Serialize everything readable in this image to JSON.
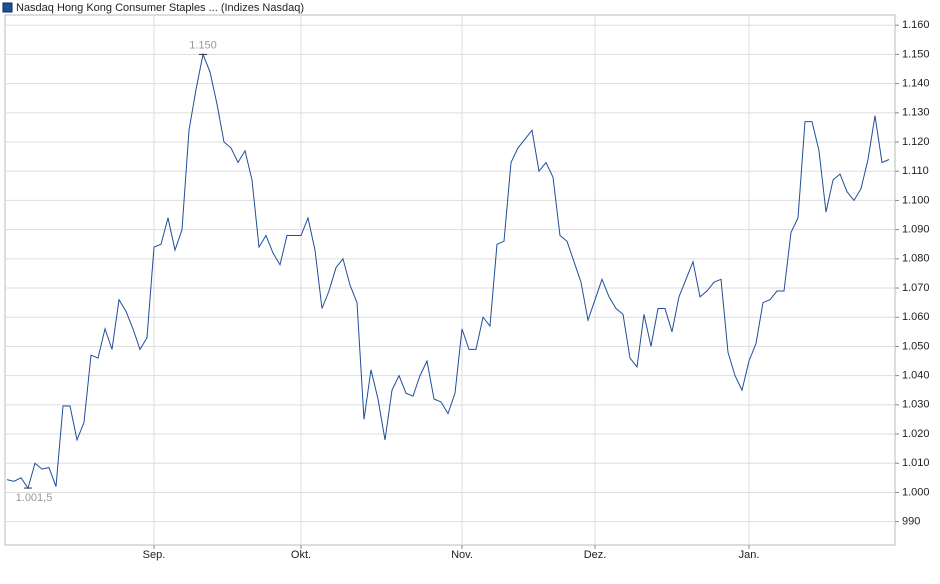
{
  "chart_data": {
    "type": "line",
    "title": "Nasdaq Hong Kong Consumer Staples ... (Indizes Nasdaq)",
    "series": [
      {
        "name": "Nasdaq Hong Kong Consumer Staples",
        "color": "#1f4e9a",
        "values": [
          1004.4,
          1003.8,
          1005,
          1001.5,
          1010,
          1008,
          1008.5,
          1002,
          1029.6,
          1029.6,
          1018,
          1024,
          1047,
          1046,
          1056,
          1049,
          1066,
          1062,
          1056,
          1049,
          1053,
          1084,
          1085,
          1094,
          1083,
          1090,
          1124,
          1138,
          1150,
          1144,
          1133,
          1120,
          1118,
          1113,
          1117,
          1107,
          1084,
          1088,
          1082,
          1078,
          1088,
          1088,
          1088,
          1094,
          1083,
          1063,
          1069,
          1077,
          1080,
          1071,
          1065,
          1025,
          1042,
          1032,
          1018,
          1035,
          1040,
          1034,
          1033,
          1040,
          1045,
          1032,
          1031,
          1027,
          1034,
          1056,
          1049,
          1049,
          1060,
          1057,
          1085,
          1086,
          1113,
          1118,
          1121,
          1124,
          1110,
          1113,
          1108,
          1088,
          1086,
          1079,
          1072,
          1059,
          1066,
          1073,
          1067,
          1063,
          1061,
          1046,
          1043,
          1061,
          1050,
          1063,
          1063,
          1055,
          1067,
          1073,
          1079,
          1067,
          1069,
          1072,
          1073,
          1048,
          1040,
          1035,
          1045,
          1051,
          1065,
          1066,
          1069,
          1069,
          1089,
          1094,
          1127,
          1127,
          1117,
          1096,
          1107,
          1109,
          1103,
          1100,
          1104,
          1114,
          1129,
          1113,
          1114
        ]
      }
    ],
    "categories": [
      null,
      null,
      null,
      null,
      null,
      null,
      null,
      null,
      null,
      null,
      null,
      null,
      null,
      null,
      null,
      null,
      null,
      null,
      null,
      null,
      null,
      "Sep.",
      null,
      null,
      null,
      null,
      null,
      null,
      null,
      null,
      null,
      null,
      null,
      null,
      null,
      null,
      null,
      null,
      null,
      null,
      null,
      null,
      "Okt.",
      null,
      null,
      null,
      null,
      null,
      null,
      null,
      null,
      null,
      null,
      null,
      null,
      null,
      null,
      null,
      null,
      null,
      null,
      null,
      null,
      null,
      null,
      "Nov.",
      null,
      null,
      null,
      null,
      null,
      null,
      null,
      null,
      null,
      null,
      null,
      null,
      null,
      null,
      null,
      null,
      null,
      null,
      "Dez.",
      null,
      null,
      null,
      null,
      null,
      null,
      null,
      null,
      null,
      null,
      null,
      null,
      null,
      null,
      null,
      null,
      null,
      null,
      null,
      null,
      null,
      "Jan.",
      null,
      null,
      null,
      null,
      null,
      null,
      null,
      null,
      null,
      null,
      null,
      null,
      null,
      null,
      null,
      null,
      null,
      null,
      null,
      null
    ],
    "annotations": [
      {
        "label": "1.150",
        "value": 1150
      },
      {
        "label": "1.001,5",
        "value": 1001.5
      }
    ],
    "ylim": [
      982,
      1163.5
    ],
    "yticks": [
      990,
      {
        "value": 1000,
        "label": "1.000"
      },
      {
        "value": 1010,
        "label": "1.010"
      },
      {
        "value": 1020,
        "label": "1.020"
      },
      {
        "value": 1030,
        "label": "1.030"
      },
      {
        "value": 1040,
        "label": "1.040"
      },
      {
        "value": 1050,
        "label": "1.050"
      },
      {
        "value": 1060,
        "label": "1.060"
      },
      {
        "value": 1070,
        "label": "1.070"
      },
      {
        "value": 1080,
        "label": "1.080"
      },
      {
        "value": 1090,
        "label": "1.090"
      },
      {
        "value": 1100,
        "label": "1.100"
      },
      {
        "value": 1110,
        "label": "1.110"
      },
      {
        "value": 1120,
        "label": "1.120"
      },
      {
        "value": 1130,
        "label": "1.130"
      },
      {
        "value": 1140,
        "label": "1.140"
      },
      {
        "value": 1150,
        "label": "1.150"
      },
      {
        "value": 1160,
        "label": "1.160"
      }
    ],
    "grid": true
  }
}
